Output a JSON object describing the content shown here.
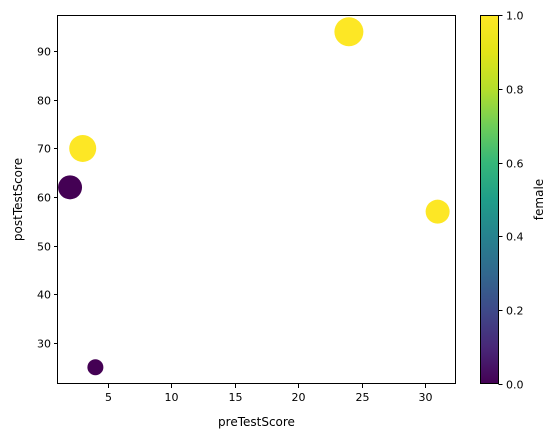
{
  "chart_data": {
    "type": "scatter",
    "title": "",
    "xlabel": "preTestScore",
    "ylabel": "postTestScore",
    "xlim": [
      1.05,
      32.45
    ],
    "ylim": [
      21.55,
      97.45
    ],
    "xticks": [
      5,
      10,
      15,
      20,
      25,
      30
    ],
    "yticks": [
      30,
      40,
      50,
      60,
      70,
      80,
      90
    ],
    "grid": false,
    "points": [
      {
        "x": 4,
        "y": 25,
        "female": 0,
        "size": "small"
      },
      {
        "x": 24,
        "y": 94,
        "female": 1,
        "size": "large"
      },
      {
        "x": 31,
        "y": 57,
        "female": 1,
        "size": "medium"
      },
      {
        "x": 2,
        "y": 62,
        "female": 0,
        "size": "medium"
      },
      {
        "x": 3,
        "y": 70,
        "female": 1,
        "size": "medium-large"
      }
    ],
    "colorbar": {
      "label": "female",
      "colormap": "viridis",
      "range": [
        0.0,
        1.0
      ],
      "ticks": [
        "0.0",
        "0.2",
        "0.4",
        "0.6",
        "0.8",
        "1.0"
      ]
    },
    "colors": {
      "low": "#440154",
      "high": "#fde725"
    }
  }
}
